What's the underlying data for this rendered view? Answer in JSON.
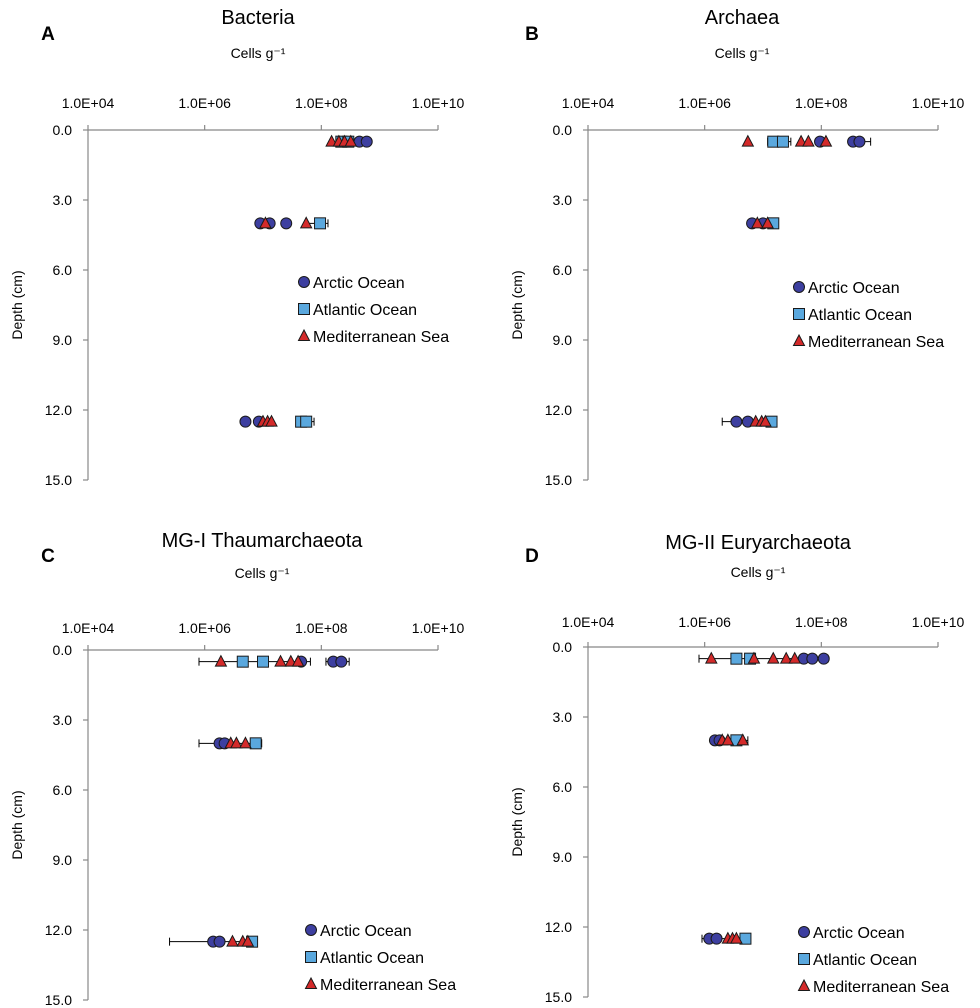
{
  "figure": {
    "depth_tick_labels": [
      "0.0",
      "3.0",
      "6.0",
      "9.0",
      "12.0",
      "15.0"
    ],
    "x_tick_labels": [
      "1.0E+04",
      "1.0E+06",
      "1.0E+08",
      "1.0E+10"
    ]
  },
  "chart_data": [
    {
      "panel": "A",
      "type": "scatter",
      "title": "Bacteria",
      "xlabel": "Cells g⁻¹",
      "ylabel": "Depth (cm)",
      "x_scale": "log",
      "xlim": [
        10000,
        10000000000
      ],
      "ylim": [
        0,
        15
      ],
      "y_inverted": true,
      "x_axis_position": "top",
      "legend_position": "right-middle",
      "colors": {
        "Arctic Ocean": "#3d3fa0",
        "Atlantic Ocean": "#5aa8de",
        "Mediterranean Sea": "#d42a2a"
      },
      "series": [
        {
          "name": "Arctic Ocean",
          "marker": "circle",
          "points": [
            {
              "x": 450000000,
              "y": 0.5
            },
            {
              "x": 600000000,
              "y": 0.5
            },
            {
              "x": 9000000,
              "y": 4
            },
            {
              "x": 13000000,
              "y": 4
            },
            {
              "x": 25000000,
              "y": 4
            },
            {
              "x": 5000000,
              "y": 12.5
            },
            {
              "x": 8500000,
              "y": 12.5
            }
          ]
        },
        {
          "name": "Atlantic Ocean",
          "marker": "square",
          "points": [
            {
              "x": 220000000,
              "y": 0.5
            },
            {
              "x": 290000000,
              "y": 0.5
            },
            {
              "x": 95000000,
              "y": 4
            },
            {
              "x": 45000000,
              "y": 12.5
            },
            {
              "x": 55000000,
              "y": 12.5
            }
          ]
        },
        {
          "name": "Mediterranean Sea",
          "marker": "triangle",
          "points": [
            {
              "x": 150000000,
              "y": 0.5
            },
            {
              "x": 200000000,
              "y": 0.5
            },
            {
              "x": 250000000,
              "y": 0.5
            },
            {
              "x": 320000000,
              "y": 0.5
            },
            {
              "x": 11000000,
              "y": 4
            },
            {
              "x": 55000000,
              "y": 4
            },
            {
              "x": 10000000,
              "y": 12.5
            },
            {
              "x": 12000000,
              "y": 12.5
            },
            {
              "x": 14000000,
              "y": 12.5
            }
          ]
        }
      ],
      "error_bars": [
        {
          "y": 0.5,
          "x_min": 200000000,
          "x_max": 310000000
        },
        {
          "y": 4,
          "x_min": 55000000,
          "x_max": 130000000
        },
        {
          "y": 12.5,
          "x_min": 40000000,
          "x_max": 75000000
        }
      ]
    },
    {
      "panel": "B",
      "type": "scatter",
      "title": "Archaea",
      "xlabel": "Cells g⁻¹",
      "ylabel": "Depth (cm)",
      "x_scale": "log",
      "xlim": [
        10000,
        10000000000
      ],
      "ylim": [
        0,
        15
      ],
      "y_inverted": true,
      "x_axis_position": "top",
      "legend_position": "right-middle",
      "colors": {
        "Arctic Ocean": "#3d3fa0",
        "Atlantic Ocean": "#5aa8de",
        "Mediterranean Sea": "#d42a2a"
      },
      "series": [
        {
          "name": "Arctic Ocean",
          "marker": "circle",
          "points": [
            {
              "x": 95000000,
              "y": 0.5
            },
            {
              "x": 350000000,
              "y": 0.5
            },
            {
              "x": 450000000,
              "y": 0.5
            },
            {
              "x": 6500000,
              "y": 4
            },
            {
              "x": 10000000,
              "y": 4
            },
            {
              "x": 3500000,
              "y": 12.5
            },
            {
              "x": 5500000,
              "y": 12.5
            }
          ]
        },
        {
          "name": "Atlantic Ocean",
          "marker": "square",
          "points": [
            {
              "x": 15000000,
              "y": 0.5
            },
            {
              "x": 22000000,
              "y": 0.5
            },
            {
              "x": 15000000,
              "y": 4
            },
            {
              "x": 14000000,
              "y": 12.5
            }
          ]
        },
        {
          "name": "Mediterranean Sea",
          "marker": "triangle",
          "points": [
            {
              "x": 5500000,
              "y": 0.5
            },
            {
              "x": 45000000,
              "y": 0.5
            },
            {
              "x": 60000000,
              "y": 0.5
            },
            {
              "x": 120000000,
              "y": 0.5
            },
            {
              "x": 8000000,
              "y": 4
            },
            {
              "x": 12000000,
              "y": 4
            },
            {
              "x": 7500000,
              "y": 12.5
            },
            {
              "x": 9500000,
              "y": 12.5
            },
            {
              "x": 11000000,
              "y": 12.5
            }
          ]
        }
      ],
      "error_bars": [
        {
          "y": 0.5,
          "x_min": 12000000,
          "x_max": 30000000
        },
        {
          "y": 0.5,
          "x_min": 300000000,
          "x_max": 700000000
        },
        {
          "y": 4,
          "x_min": 12000000,
          "x_max": 18000000
        },
        {
          "y": 12.5,
          "x_min": 2000000,
          "x_max": 4000000
        },
        {
          "y": 12.5,
          "x_min": 12000000,
          "x_max": 17000000
        }
      ]
    },
    {
      "panel": "C",
      "type": "scatter",
      "title": "MG-I Thaumarchaeota",
      "xlabel": "Cells g⁻¹",
      "ylabel": "Depth (cm)",
      "x_scale": "log",
      "xlim": [
        10000,
        10000000000
      ],
      "ylim": [
        0,
        15
      ],
      "y_inverted": true,
      "x_axis_position": "top",
      "legend_position": "bottom-right",
      "colors": {
        "Arctic Ocean": "#3d3fa0",
        "Atlantic Ocean": "#5aa8de",
        "Mediterranean Sea": "#d42a2a"
      },
      "series": [
        {
          "name": "Arctic Ocean",
          "marker": "circle",
          "points": [
            {
              "x": 45000000,
              "y": 0.5
            },
            {
              "x": 160000000,
              "y": 0.5
            },
            {
              "x": 220000000,
              "y": 0.5
            },
            {
              "x": 1800000,
              "y": 4
            },
            {
              "x": 2200000,
              "y": 4
            },
            {
              "x": 1400000,
              "y": 12.5
            },
            {
              "x": 1800000,
              "y": 12.5
            }
          ]
        },
        {
          "name": "Atlantic Ocean",
          "marker": "square",
          "points": [
            {
              "x": 4500000,
              "y": 0.5
            },
            {
              "x": 10000000,
              "y": 0.5
            },
            {
              "x": 7500000,
              "y": 4
            },
            {
              "x": 6500000,
              "y": 12.5
            }
          ]
        },
        {
          "name": "Mediterranean Sea",
          "marker": "triangle",
          "points": [
            {
              "x": 1900000,
              "y": 0.5
            },
            {
              "x": 20000000,
              "y": 0.5
            },
            {
              "x": 30000000,
              "y": 0.5
            },
            {
              "x": 40000000,
              "y": 0.5
            },
            {
              "x": 2800000,
              "y": 4
            },
            {
              "x": 3500000,
              "y": 4
            },
            {
              "x": 5000000,
              "y": 4
            },
            {
              "x": 3000000,
              "y": 12.5
            },
            {
              "x": 4500000,
              "y": 12.5
            },
            {
              "x": 5500000,
              "y": 12.5
            }
          ]
        }
      ],
      "error_bars": [
        {
          "y": 0.5,
          "x_min": 800000,
          "x_max": 65000000
        },
        {
          "y": 0.5,
          "x_min": 120000000,
          "x_max": 300000000
        },
        {
          "y": 4,
          "x_min": 800000,
          "x_max": 9500000
        },
        {
          "y": 12.5,
          "x_min": 250000,
          "x_max": 7000000
        }
      ]
    },
    {
      "panel": "D",
      "type": "scatter",
      "title": "MG-II Euryarchaeota",
      "xlabel": "Cells g⁻¹",
      "ylabel": "Depth (cm)",
      "x_scale": "log",
      "xlim": [
        10000,
        10000000000
      ],
      "ylim": [
        0,
        15
      ],
      "y_inverted": true,
      "x_axis_position": "top",
      "legend_position": "bottom-right",
      "colors": {
        "Arctic Ocean": "#3d3fa0",
        "Atlantic Ocean": "#5aa8de",
        "Mediterranean Sea": "#d42a2a"
      },
      "series": [
        {
          "name": "Arctic Ocean",
          "marker": "circle",
          "points": [
            {
              "x": 50000000,
              "y": 0.5
            },
            {
              "x": 70000000,
              "y": 0.5
            },
            {
              "x": 110000000,
              "y": 0.5
            },
            {
              "x": 1500000,
              "y": 4
            },
            {
              "x": 1800000,
              "y": 4
            },
            {
              "x": 1200000,
              "y": 12.5
            },
            {
              "x": 1600000,
              "y": 12.5
            }
          ]
        },
        {
          "name": "Atlantic Ocean",
          "marker": "square",
          "points": [
            {
              "x": 3500000,
              "y": 0.5
            },
            {
              "x": 6000000,
              "y": 0.5
            },
            {
              "x": 3500000,
              "y": 4
            },
            {
              "x": 5000000,
              "y": 12.5
            }
          ]
        },
        {
          "name": "Mediterranean Sea",
          "marker": "triangle",
          "points": [
            {
              "x": 1300000,
              "y": 0.5
            },
            {
              "x": 7000000,
              "y": 0.5
            },
            {
              "x": 15000000,
              "y": 0.5
            },
            {
              "x": 25000000,
              "y": 0.5
            },
            {
              "x": 35000000,
              "y": 0.5
            },
            {
              "x": 2000000,
              "y": 4
            },
            {
              "x": 2500000,
              "y": 4
            },
            {
              "x": 4500000,
              "y": 4
            },
            {
              "x": 2500000,
              "y": 12.5
            },
            {
              "x": 3000000,
              "y": 12.5
            },
            {
              "x": 3500000,
              "y": 12.5
            }
          ]
        }
      ],
      "error_bars": [
        {
          "y": 0.5,
          "x_min": 800000,
          "x_max": 130000000
        },
        {
          "y": 4,
          "x_min": 1300000,
          "x_max": 5500000
        },
        {
          "y": 12.5,
          "x_min": 900000,
          "x_max": 6000000
        }
      ]
    }
  ]
}
